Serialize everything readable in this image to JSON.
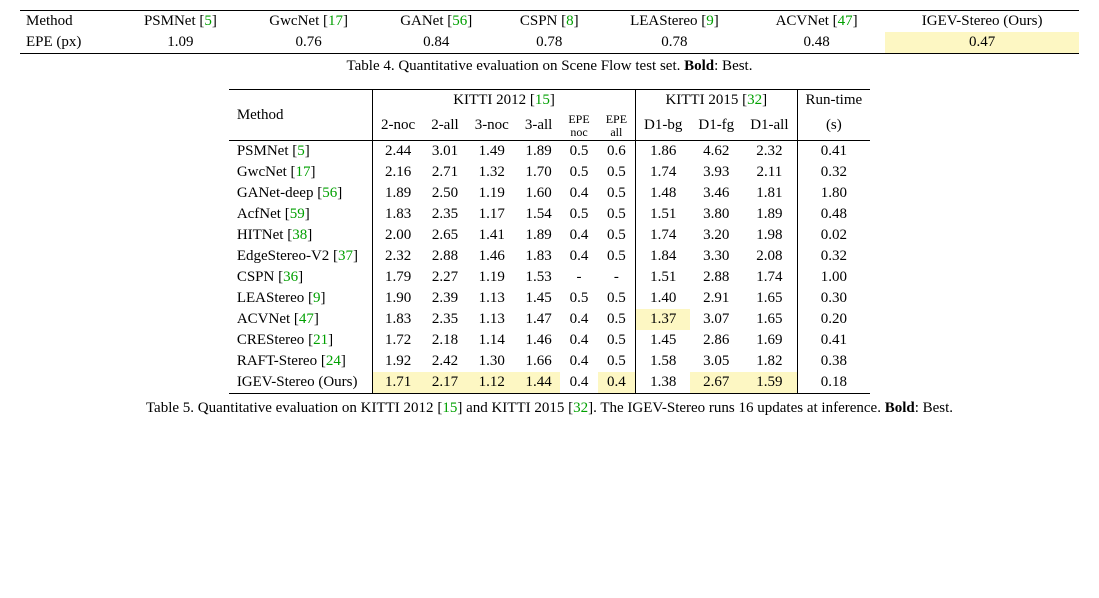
{
  "table4": {
    "row_labels": [
      "Method",
      "EPE (px)"
    ],
    "columns": [
      {
        "name": "PSMNet",
        "cite": "5",
        "val": "1.09"
      },
      {
        "name": "GwcNet",
        "cite": "17",
        "val": "0.76"
      },
      {
        "name": "GANet",
        "cite": "56",
        "val": "0.84"
      },
      {
        "name": "CSPN",
        "cite": "8",
        "val": "0.78"
      },
      {
        "name": "LEAStereo",
        "cite": "9",
        "val": "0.78"
      },
      {
        "name": "ACVNet",
        "cite": "47",
        "val": "0.48"
      },
      {
        "name": "IGEV-Stereo (Ours)",
        "cite": "",
        "val": "0.47",
        "highlight": true,
        "bold": true
      }
    ],
    "caption_prefix": "Table 4. Quantitative evaluation on Scene Flow test set. ",
    "caption_bold": "Bold",
    "caption_suffix": ": Best."
  },
  "table5": {
    "header": {
      "method": "Method",
      "group1": "KITTI 2012",
      "group1_cite": "15",
      "group2": "KITTI 2015",
      "group2_cite": "32",
      "runtime_top": "Run-time",
      "runtime_bot": "(s)",
      "sub": [
        "2-noc",
        "2-all",
        "3-noc",
        "3-all",
        "EPE\nnoc",
        "EPE\nall",
        "D1-bg",
        "D1-fg",
        "D1-all"
      ]
    },
    "rows": [
      {
        "name": "PSMNet",
        "cite": "5",
        "v": [
          "2.44",
          "3.01",
          "1.49",
          "1.89",
          "0.5",
          "0.6",
          "1.86",
          "4.62",
          "2.32",
          "0.41"
        ]
      },
      {
        "name": "GwcNet",
        "cite": "17",
        "v": [
          "2.16",
          "2.71",
          "1.32",
          "1.70",
          "0.5",
          "0.5",
          "1.74",
          "3.93",
          "2.11",
          "0.32"
        ]
      },
      {
        "name": "GANet-deep",
        "cite": "56",
        "v": [
          "1.89",
          "2.50",
          "1.19",
          "1.60",
          "0.4",
          "0.5",
          "1.48",
          "3.46",
          "1.81",
          "1.80"
        ]
      },
      {
        "name": "AcfNet",
        "cite": "59",
        "v": [
          "1.83",
          "2.35",
          "1.17",
          "1.54",
          "0.5",
          "0.5",
          "1.51",
          "3.80",
          "1.89",
          "0.48"
        ]
      },
      {
        "name": "HITNet",
        "cite": "38",
        "v": [
          "2.00",
          "2.65",
          "1.41",
          "1.89",
          "0.4",
          "0.5",
          "1.74",
          "3.20",
          "1.98",
          "0.02"
        ]
      },
      {
        "name": "EdgeStereo-V2",
        "cite": "37",
        "v": [
          "2.32",
          "2.88",
          "1.46",
          "1.83",
          "0.4",
          "0.5",
          "1.84",
          "3.30",
          "2.08",
          "0.32"
        ]
      },
      {
        "name": "CSPN",
        "cite": "36",
        "v": [
          "1.79",
          "2.27",
          "1.19",
          "1.53",
          "-",
          "-",
          "1.51",
          "2.88",
          "1.74",
          "1.00"
        ]
      },
      {
        "name": "LEAStereo",
        "cite": "9",
        "v": [
          "1.90",
          "2.39",
          "1.13",
          "1.45",
          "0.5",
          "0.5",
          "1.40",
          "2.91",
          "1.65",
          "0.30"
        ]
      },
      {
        "name": "ACVNet",
        "cite": "47",
        "v": [
          "1.83",
          "2.35",
          "1.13",
          "1.47",
          "0.4",
          "0.5",
          "1.37",
          "3.07",
          "1.65",
          "0.20"
        ],
        "bold": [
          false,
          false,
          false,
          false,
          false,
          false,
          true,
          false,
          false,
          false
        ],
        "hl": [
          false,
          false,
          false,
          false,
          false,
          false,
          true,
          false,
          false,
          false
        ]
      },
      {
        "name": "CREStereo",
        "cite": "21",
        "v": [
          "1.72",
          "2.18",
          "1.14",
          "1.46",
          "0.4",
          "0.5",
          "1.45",
          "2.86",
          "1.69",
          "0.41"
        ]
      },
      {
        "name": "RAFT-Stereo",
        "cite": "24",
        "v": [
          "1.92",
          "2.42",
          "1.30",
          "1.66",
          "0.4",
          "0.5",
          "1.58",
          "3.05",
          "1.82",
          "0.38"
        ]
      },
      {
        "name": "IGEV-Stereo (Ours)",
        "cite": "",
        "v": [
          "1.71",
          "2.17",
          "1.12",
          "1.44",
          "0.4",
          "0.4",
          "1.38",
          "2.67",
          "1.59",
          "0.18"
        ],
        "bold": [
          true,
          true,
          true,
          true,
          false,
          true,
          false,
          true,
          true,
          false
        ],
        "hl": [
          true,
          true,
          true,
          true,
          false,
          true,
          false,
          true,
          true,
          false
        ]
      }
    ],
    "caption_prefix": "Table 5. Quantitative evaluation on KITTI 2012 ",
    "caption_cite1": "15",
    "caption_mid": " and KITTI 2015 ",
    "caption_cite2": "32",
    "caption_tail": ". The IGEV-Stereo runs 16 updates at inference. ",
    "caption_bold": "Bold",
    "caption_suffix": ": Best."
  }
}
